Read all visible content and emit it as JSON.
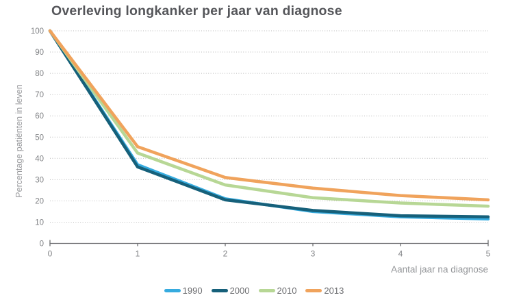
{
  "title": "Overleving longkanker per jaar van diagnose",
  "chart_data": {
    "type": "line",
    "title": "Overleving longkanker per jaar van diagnose",
    "x": [
      0,
      1,
      2,
      3,
      4,
      5
    ],
    "x_tick_labels": [
      "0",
      "1",
      "2",
      "3",
      "4",
      "5"
    ],
    "xlabel": "Aantal jaar na diagnose",
    "ylabel": "Percentage patiënten in leven",
    "ylim": [
      0,
      100
    ],
    "y_tick_step": 10,
    "grid": "horizontal-dotted",
    "legend_position": "bottom-center",
    "series": [
      {
        "name": "1990",
        "color": "#36abdf",
        "values": [
          100,
          37,
          21,
          15,
          12.5,
          11.5
        ]
      },
      {
        "name": "2000",
        "color": "#16607a",
        "values": [
          100,
          36,
          20.5,
          15.5,
          13,
          12.5
        ]
      },
      {
        "name": "2010",
        "color": "#b7d795",
        "values": [
          100,
          42.5,
          27.5,
          21.5,
          19,
          17.5
        ]
      },
      {
        "name": "2013",
        "color": "#f0a35c",
        "values": [
          100,
          45.5,
          31,
          26,
          22.5,
          20.5
        ]
      }
    ]
  },
  "style_colors": {
    "title": "#55565a",
    "axis": "#6d6e71",
    "tick_label": "#808285",
    "grid": "#b9b9b9",
    "axis_label": "#939598",
    "legend_label": "#6d6e71"
  }
}
